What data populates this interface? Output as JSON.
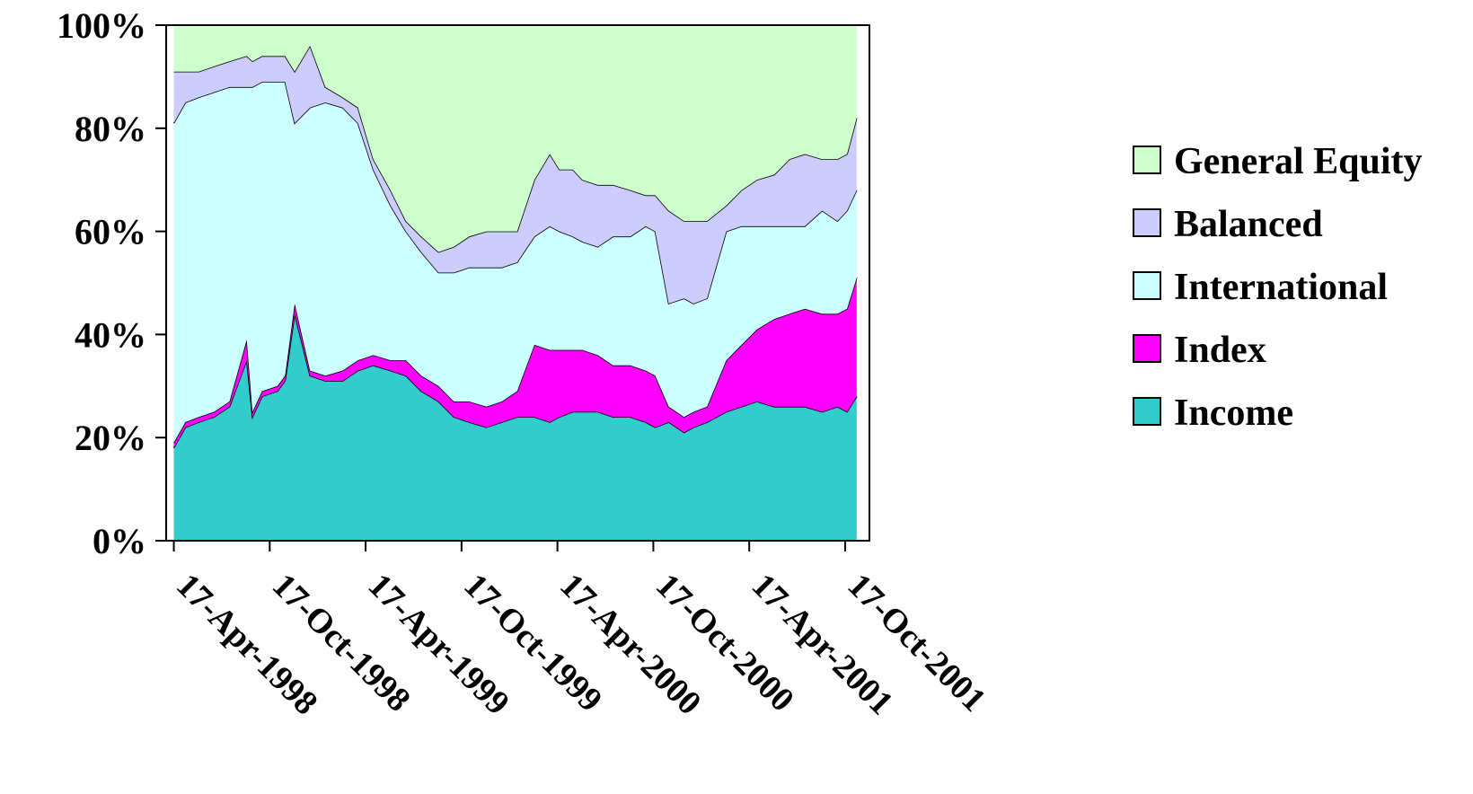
{
  "chart_data": {
    "type": "area",
    "stacked": true,
    "percent": true,
    "title": "",
    "xlabel": "",
    "ylabel": "",
    "ylim": [
      0,
      100
    ],
    "y_ticks": [
      "0%",
      "20%",
      "40%",
      "60%",
      "80%",
      "100%"
    ],
    "x_tick_labels": [
      "17-Apr-1998",
      "17-Oct-1998",
      "17-Apr-1999",
      "17-Oct-1999",
      "17-Apr-2000",
      "17-Oct-2000",
      "17-Apr-2001",
      "17-Oct-2001"
    ],
    "x_range": [
      "1998-04",
      "2001-12"
    ],
    "grid": false,
    "legend_position": "right",
    "legend_order": [
      "General Equity",
      "Balanced",
      "International",
      "Index",
      "Income"
    ],
    "x": [
      1998.29,
      1998.35,
      1998.42,
      1998.5,
      1998.58,
      1998.67,
      1998.7,
      1998.75,
      1998.83,
      1998.87,
      1998.92,
      1999.0,
      1999.08,
      1999.17,
      1999.25,
      1999.33,
      1999.42,
      1999.5,
      1999.58,
      1999.67,
      1999.75,
      1999.83,
      1999.92,
      2000.0,
      2000.08,
      2000.17,
      2000.25,
      2000.3,
      2000.37,
      2000.42,
      2000.5,
      2000.58,
      2000.67,
      2000.75,
      2000.8,
      2000.87,
      2000.95,
      2001.0,
      2001.07,
      2001.17,
      2001.25,
      2001.33,
      2001.42,
      2001.5,
      2001.58,
      2001.67,
      2001.75,
      2001.8,
      2001.85
    ],
    "series": [
      {
        "name": "Income",
        "color": "#33CCCC",
        "values": [
          18,
          22,
          23,
          24,
          26,
          35,
          24,
          28,
          29,
          31,
          44,
          32,
          31,
          31,
          33,
          34,
          33,
          32,
          29,
          27,
          24,
          23,
          22,
          23,
          24,
          24,
          23,
          24,
          25,
          25,
          25,
          24,
          24,
          23,
          22,
          23,
          21,
          22,
          23,
          25,
          26,
          27,
          26,
          26,
          26,
          25,
          26,
          25,
          28
        ]
      },
      {
        "name": "Index",
        "color": "#FF00FF",
        "values": [
          1,
          1,
          1,
          1,
          1,
          4,
          1,
          1,
          1,
          1,
          2,
          1,
          1,
          2,
          2,
          2,
          2,
          3,
          3,
          3,
          3,
          4,
          4,
          4,
          5,
          14,
          14,
          13,
          12,
          12,
          11,
          10,
          10,
          10,
          10,
          3,
          3,
          3,
          3,
          10,
          12,
          14,
          17,
          18,
          19,
          19,
          18,
          20,
          23
        ]
      },
      {
        "name": "International",
        "color": "#CCFFFF",
        "values": [
          62,
          62,
          62,
          62,
          61,
          49,
          63,
          60,
          59,
          57,
          35,
          51,
          53,
          51,
          46,
          36,
          30,
          25,
          24,
          22,
          25,
          26,
          27,
          26,
          25,
          21,
          24,
          23,
          22,
          21,
          21,
          25,
          25,
          28,
          28,
          20,
          23,
          21,
          21,
          25,
          23,
          20,
          18,
          17,
          16,
          20,
          18,
          19,
          17
        ]
      },
      {
        "name": "Balanced",
        "color": "#CCCCFF",
        "values": [
          10,
          6,
          5,
          5,
          5,
          6,
          5,
          5,
          5,
          5,
          10,
          12,
          3,
          2,
          3,
          2,
          3,
          2,
          3,
          4,
          5,
          6,
          7,
          7,
          6,
          11,
          14,
          12,
          13,
          12,
          12,
          10,
          9,
          6,
          7,
          18,
          15,
          16,
          15,
          5,
          7,
          9,
          10,
          13,
          14,
          10,
          12,
          11,
          14
        ]
      },
      {
        "name": "General Equity",
        "color": "#CCFFCC",
        "values": [
          9,
          9,
          9,
          8,
          7,
          6,
          7,
          6,
          6,
          6,
          9,
          4,
          12,
          14,
          16,
          26,
          32,
          38,
          41,
          44,
          43,
          41,
          40,
          40,
          40,
          30,
          25,
          28,
          28,
          30,
          31,
          31,
          32,
          33,
          33,
          36,
          38,
          38,
          38,
          35,
          32,
          30,
          29,
          26,
          25,
          26,
          26,
          25,
          18
        ]
      }
    ]
  }
}
